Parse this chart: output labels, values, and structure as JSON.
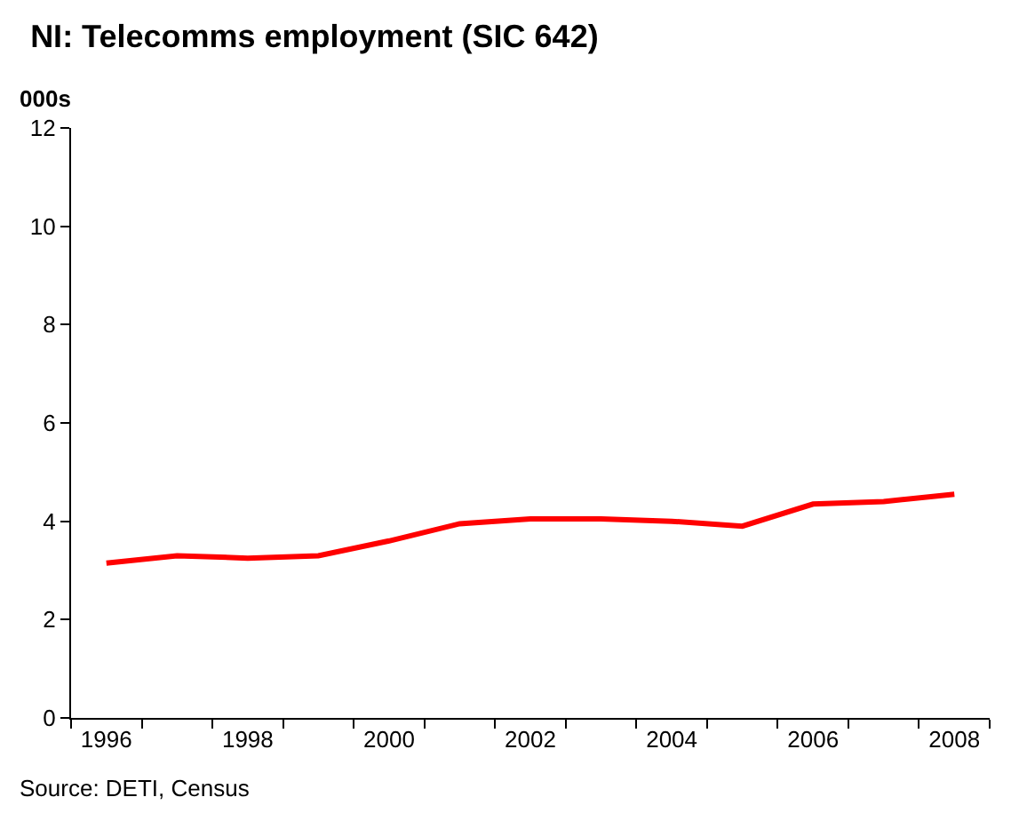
{
  "chart_data": {
    "type": "line",
    "title": "NI: Telecomms employment (SIC 642)",
    "ylabel": "000s",
    "categories": [
      "1996",
      null,
      "1998",
      null,
      "2000",
      null,
      "2002",
      null,
      "2004",
      null,
      "2006",
      null,
      "2008"
    ],
    "series": [
      {
        "color": "#ff0000",
        "values": [
          3.15,
          3.3,
          3.25,
          3.3,
          3.6,
          3.95,
          4.05,
          4.05,
          4.0,
          3.9,
          4.35,
          4.4,
          4.55
        ]
      }
    ],
    "ylim": [
      0,
      12
    ],
    "yticks": [
      0,
      2,
      4,
      6,
      8,
      10,
      12
    ],
    "grid": false,
    "marker": "none",
    "line_style": "solid",
    "annotations": [
      "Source: DETI, Census"
    ]
  }
}
